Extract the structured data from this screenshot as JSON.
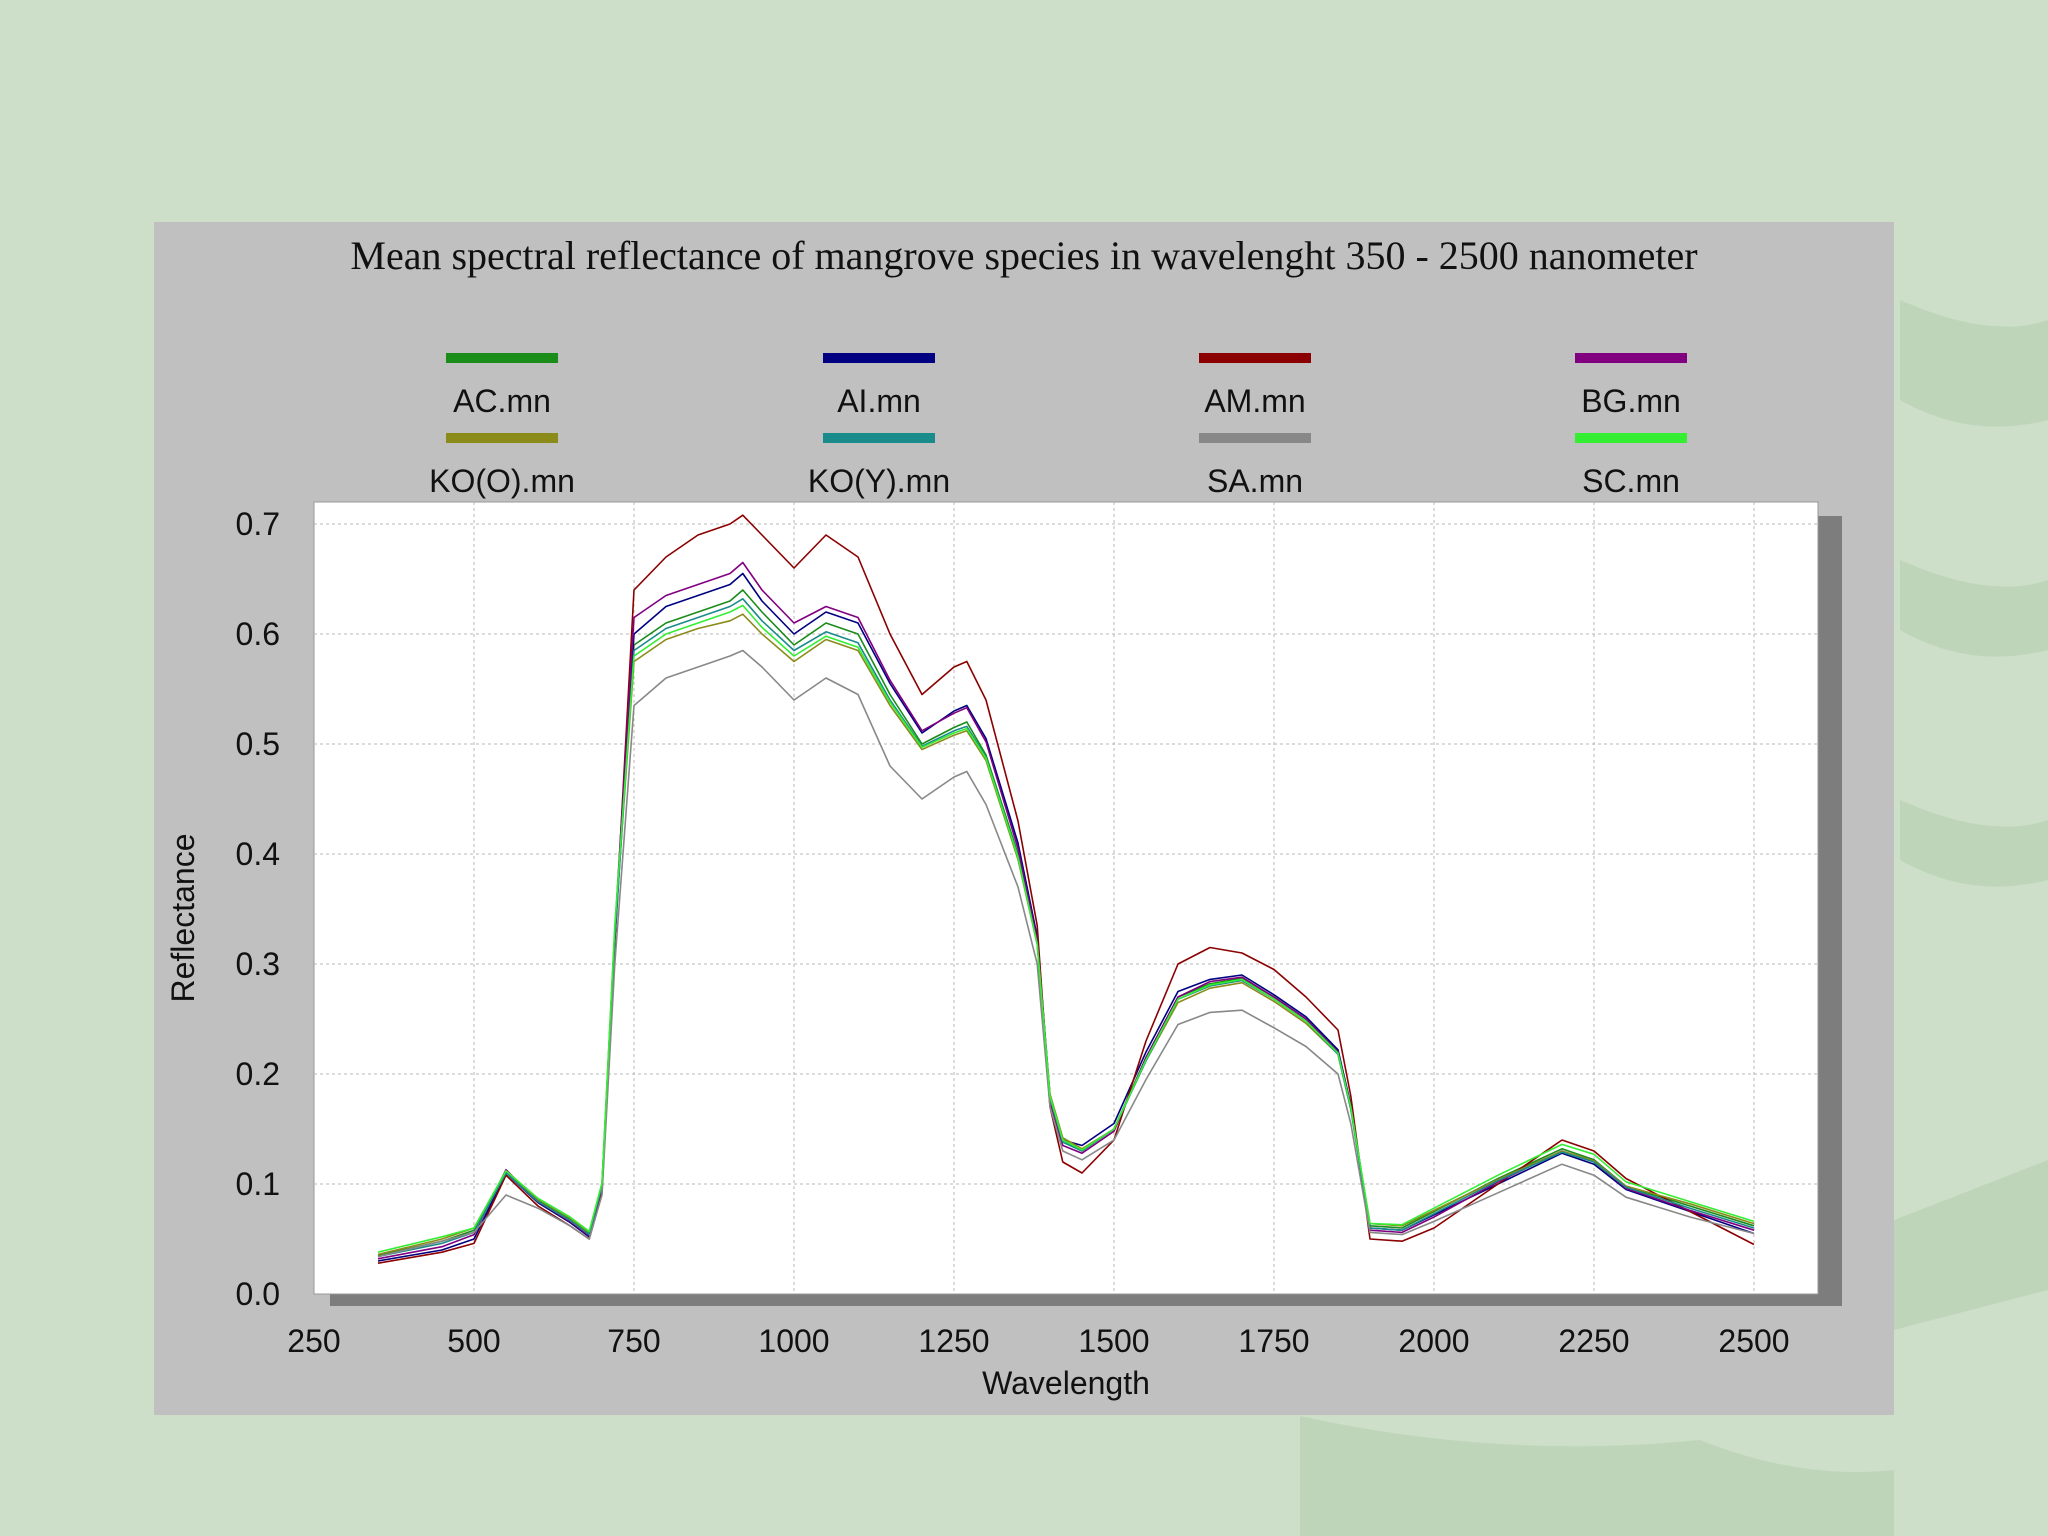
{
  "chart_data": {
    "type": "line",
    "title": "Mean spectral reflectance of mangrove species in wavelenght 350 - 2500 nanometer",
    "xlabel": "Wavelength",
    "ylabel": "Reflectance",
    "xlim": [
      250,
      2600
    ],
    "ylim": [
      0,
      0.72
    ],
    "x_ticks": [
      "250",
      "500",
      "750",
      "1000",
      "1250",
      "1500",
      "1750",
      "2000",
      "2250",
      "2500"
    ],
    "y_ticks": [
      "0.0",
      "0.1",
      "0.2",
      "0.3",
      "0.4",
      "0.5",
      "0.6",
      "0.7"
    ],
    "grid": true,
    "legend_position": "top",
    "x": [
      350,
      450,
      500,
      550,
      600,
      650,
      680,
      700,
      720,
      750,
      800,
      850,
      900,
      920,
      950,
      1000,
      1050,
      1100,
      1150,
      1200,
      1250,
      1270,
      1300,
      1350,
      1380,
      1400,
      1420,
      1450,
      1500,
      1550,
      1600,
      1650,
      1700,
      1750,
      1800,
      1850,
      1870,
      1900,
      1950,
      2000,
      2100,
      2200,
      2250,
      2300,
      2400,
      2500
    ],
    "series": [
      {
        "name": "AC.mn",
        "color": "#1a8c1a",
        "values": [
          0.035,
          0.048,
          0.058,
          0.112,
          0.085,
          0.068,
          0.055,
          0.1,
          0.33,
          0.59,
          0.61,
          0.62,
          0.63,
          0.64,
          0.62,
          0.59,
          0.61,
          0.6,
          0.545,
          0.5,
          0.515,
          0.52,
          0.49,
          0.4,
          0.32,
          0.18,
          0.14,
          0.13,
          0.15,
          0.215,
          0.27,
          0.282,
          0.287,
          0.27,
          0.25,
          0.22,
          0.17,
          0.062,
          0.06,
          0.075,
          0.105,
          0.132,
          0.122,
          0.098,
          0.08,
          0.062
        ]
      },
      {
        "name": "AI.mn",
        "color": "#000080",
        "values": [
          0.03,
          0.04,
          0.05,
          0.11,
          0.083,
          0.065,
          0.052,
          0.095,
          0.32,
          0.6,
          0.625,
          0.635,
          0.645,
          0.655,
          0.63,
          0.6,
          0.62,
          0.61,
          0.555,
          0.51,
          0.53,
          0.535,
          0.505,
          0.41,
          0.325,
          0.18,
          0.14,
          0.135,
          0.155,
          0.22,
          0.275,
          0.286,
          0.29,
          0.272,
          0.252,
          0.222,
          0.172,
          0.06,
          0.058,
          0.072,
          0.1,
          0.128,
          0.118,
          0.095,
          0.075,
          0.055
        ]
      },
      {
        "name": "AM.mn",
        "color": "#8b0000",
        "values": [
          0.028,
          0.038,
          0.046,
          0.108,
          0.08,
          0.062,
          0.05,
          0.092,
          0.32,
          0.64,
          0.67,
          0.69,
          0.7,
          0.708,
          0.69,
          0.66,
          0.69,
          0.67,
          0.6,
          0.545,
          0.57,
          0.575,
          0.54,
          0.43,
          0.335,
          0.17,
          0.12,
          0.11,
          0.14,
          0.23,
          0.3,
          0.315,
          0.31,
          0.295,
          0.27,
          0.24,
          0.18,
          0.05,
          0.048,
          0.06,
          0.1,
          0.14,
          0.13,
          0.105,
          0.075,
          0.045
        ]
      },
      {
        "name": "BG.mn",
        "color": "#800080",
        "values": [
          0.032,
          0.043,
          0.054,
          0.113,
          0.084,
          0.066,
          0.053,
          0.097,
          0.33,
          0.615,
          0.635,
          0.645,
          0.655,
          0.665,
          0.64,
          0.61,
          0.625,
          0.615,
          0.558,
          0.512,
          0.528,
          0.533,
          0.502,
          0.405,
          0.322,
          0.175,
          0.135,
          0.128,
          0.148,
          0.215,
          0.27,
          0.284,
          0.288,
          0.27,
          0.25,
          0.22,
          0.17,
          0.058,
          0.056,
          0.07,
          0.102,
          0.13,
          0.12,
          0.096,
          0.076,
          0.058
        ]
      },
      {
        "name": "KO(O).mn",
        "color": "#8b8b1a",
        "values": [
          0.036,
          0.05,
          0.06,
          0.111,
          0.086,
          0.069,
          0.056,
          0.1,
          0.33,
          0.575,
          0.595,
          0.605,
          0.612,
          0.618,
          0.6,
          0.575,
          0.595,
          0.585,
          0.535,
          0.495,
          0.508,
          0.512,
          0.485,
          0.395,
          0.318,
          0.182,
          0.142,
          0.132,
          0.15,
          0.212,
          0.265,
          0.278,
          0.283,
          0.266,
          0.246,
          0.218,
          0.168,
          0.064,
          0.062,
          0.076,
          0.104,
          0.13,
          0.121,
          0.098,
          0.082,
          0.064
        ]
      },
      {
        "name": "KO(Y).mn",
        "color": "#1a8b8b",
        "values": [
          0.034,
          0.046,
          0.056,
          0.11,
          0.084,
          0.067,
          0.054,
          0.098,
          0.325,
          0.585,
          0.605,
          0.615,
          0.625,
          0.632,
          0.612,
          0.585,
          0.602,
          0.592,
          0.54,
          0.498,
          0.512,
          0.516,
          0.488,
          0.398,
          0.318,
          0.178,
          0.138,
          0.13,
          0.15,
          0.212,
          0.268,
          0.28,
          0.285,
          0.268,
          0.248,
          0.218,
          0.168,
          0.06,
          0.058,
          0.073,
          0.103,
          0.129,
          0.12,
          0.097,
          0.078,
          0.06
        ]
      },
      {
        "name": "SA.mn",
        "color": "#888888",
        "values": [
          0.034,
          0.048,
          0.056,
          0.09,
          0.078,
          0.062,
          0.05,
          0.09,
          0.3,
          0.535,
          0.56,
          0.57,
          0.58,
          0.585,
          0.57,
          0.54,
          0.56,
          0.545,
          0.48,
          0.45,
          0.47,
          0.475,
          0.445,
          0.37,
          0.3,
          0.17,
          0.13,
          0.122,
          0.14,
          0.195,
          0.245,
          0.256,
          0.258,
          0.242,
          0.225,
          0.2,
          0.155,
          0.056,
          0.054,
          0.066,
          0.092,
          0.118,
          0.108,
          0.088,
          0.07,
          0.055
        ]
      },
      {
        "name": "SC.mn",
        "color": "#33ee33",
        "values": [
          0.038,
          0.052,
          0.06,
          0.112,
          0.087,
          0.07,
          0.057,
          0.101,
          0.335,
          0.58,
          0.6,
          0.61,
          0.62,
          0.626,
          0.606,
          0.58,
          0.598,
          0.588,
          0.538,
          0.497,
          0.51,
          0.514,
          0.487,
          0.397,
          0.318,
          0.18,
          0.14,
          0.131,
          0.15,
          0.213,
          0.268,
          0.281,
          0.286,
          0.268,
          0.248,
          0.219,
          0.17,
          0.064,
          0.063,
          0.078,
          0.108,
          0.136,
          0.127,
          0.102,
          0.084,
          0.066
        ]
      }
    ]
  }
}
